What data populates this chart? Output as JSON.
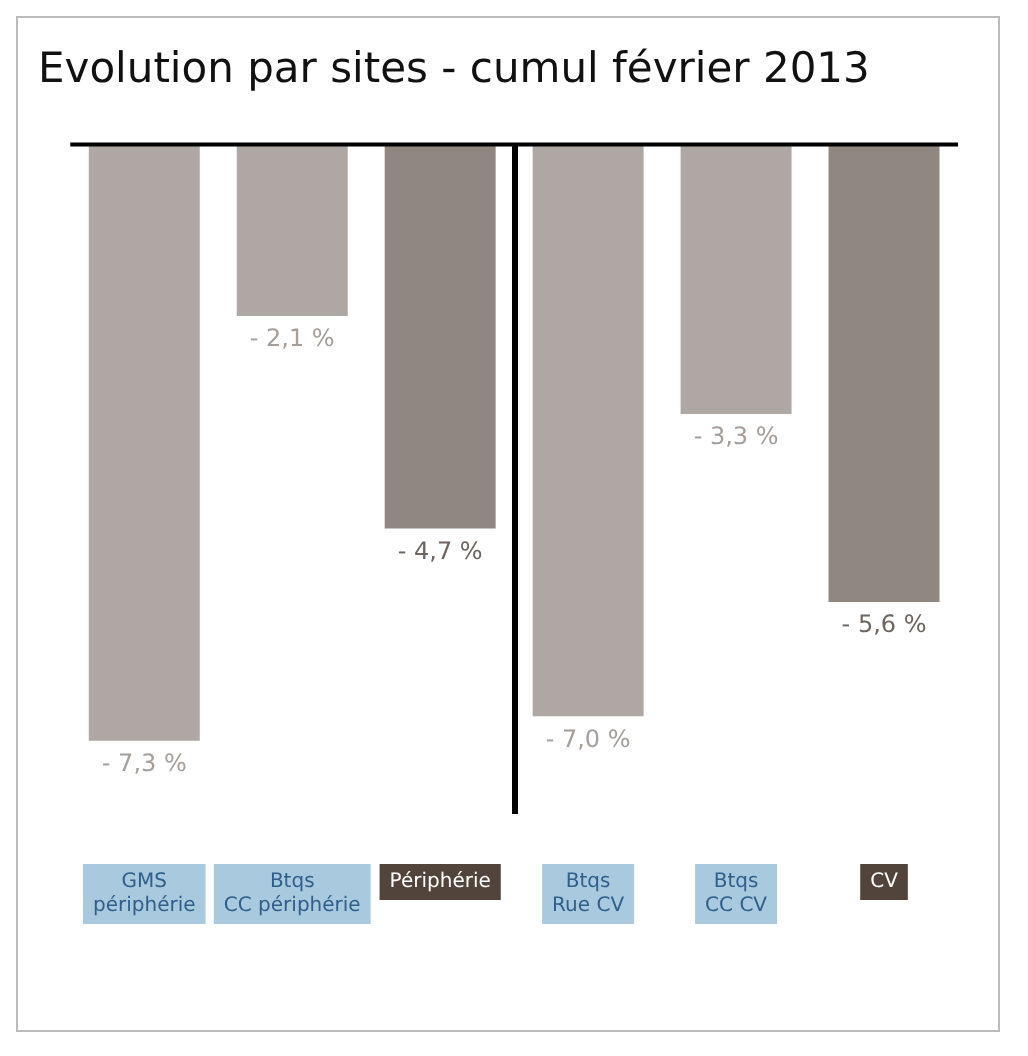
{
  "chart_data": {
    "type": "bar",
    "title": "Evolution par sites - cumul février 2013",
    "categories": [
      "GMS périphérie",
      "Btqs CC périphérie",
      "Périphérie",
      "Btqs Rue CV",
      "Btqs CC CV",
      "CV"
    ],
    "values": [
      -7.3,
      -2.1,
      -4.7,
      -7.0,
      -3.3,
      -5.6
    ],
    "colors": [
      "#aea7a3",
      "#aea7a3",
      "#8f8780",
      "#aea7a3",
      "#aea7a3",
      "#8f8780"
    ],
    "value_labels": [
      "- 7,3 %",
      "- 2,1 %",
      "- 4,7 %",
      "- 7,0 %",
      "- 3,3 %",
      "- 5,6 %"
    ],
    "legend": false,
    "grid": false
  }
}
